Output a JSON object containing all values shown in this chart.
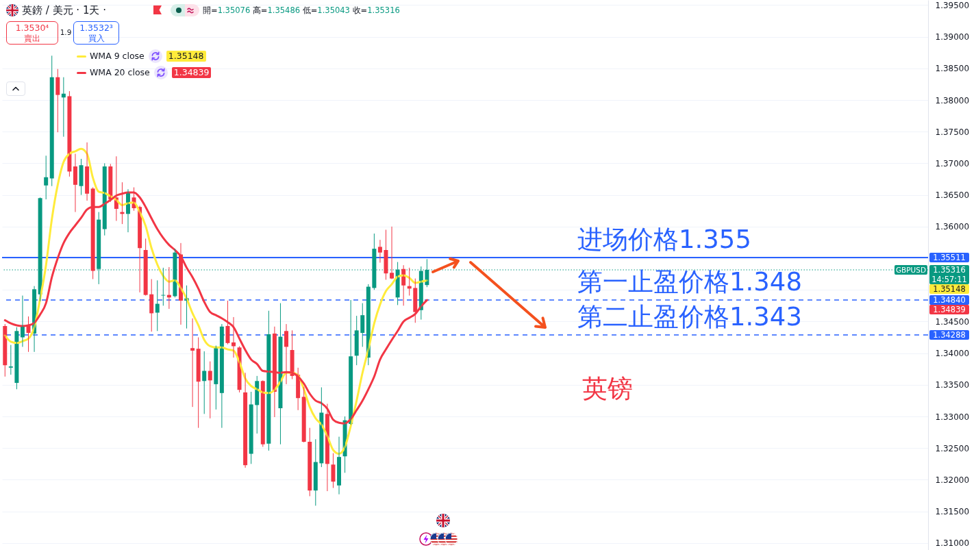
{
  "chart_data": {
    "type": "candlestick",
    "title": "英鎊 / 美元 · 1天 ·",
    "subtitle": "開=1.35076 高=1.35486 低=1.35043 收=1.35316",
    "categories": [
      null,
      null,
      null,
      null,
      null,
      null,
      null,
      null,
      null,
      null,
      null,
      null,
      null,
      null,
      null,
      null,
      null,
      null,
      null,
      null,
      null,
      null,
      null,
      null,
      null,
      null,
      null,
      null,
      null,
      null,
      null,
      null,
      null,
      null,
      null,
      null,
      null,
      null,
      null,
      null,
      null,
      null,
      null,
      null,
      null,
      null,
      null,
      null,
      null,
      null,
      null,
      null,
      null,
      null,
      null,
      null,
      null,
      null,
      null,
      null,
      null,
      null,
      null,
      null,
      null,
      null,
      null,
      null,
      null,
      null,
      null,
      null,
      null,
      null,
      null,
      null,
      null,
      null,
      null,
      null,
      null,
      null,
      null,
      null,
      null,
      null,
      null,
      null,
      null,
      null,
      null,
      null,
      null,
      null,
      null,
      null,
      null,
      null,
      null,
      null,
      null,
      null,
      null,
      null,
      null,
      null,
      null,
      null,
      null,
      null,
      null,
      null,
      null,
      null,
      null,
      null,
      null,
      null,
      null,
      null,
      null,
      null,
      null,
      null,
      null,
      null,
      null,
      null,
      null,
      null,
      null,
      null,
      null,
      null,
      null,
      null,
      null,
      null,
      null,
      null,
      null,
      null,
      null,
      null,
      null,
      null,
      null,
      null,
      null,
      null,
      null,
      null,
      null,
      null,
      null,
      null,
      null,
      null
    ],
    "ohlc": [
      [
        1.3443,
        1.3446,
        1.3363,
        1.3381
      ],
      [
        1.3377,
        1.3413,
        1.3366,
        1.3379
      ],
      [
        1.3353,
        1.3441,
        1.3343,
        1.3435
      ],
      [
        1.3425,
        1.3491,
        1.341,
        1.3443
      ],
      [
        1.3444,
        1.3458,
        1.3402,
        1.3432
      ],
      [
        1.3431,
        1.3506,
        1.3402,
        1.3501
      ],
      [
        1.3493,
        1.3646,
        1.3482,
        1.3645
      ],
      [
        1.3665,
        1.3712,
        1.3643,
        1.3678
      ],
      [
        1.3676,
        1.387,
        1.3664,
        1.3836
      ],
      [
        1.3836,
        1.3849,
        1.3749,
        1.3808
      ],
      [
        1.3804,
        1.3836,
        1.3742,
        1.381
      ],
      [
        1.3806,
        1.3814,
        1.3679,
        1.3687
      ],
      [
        1.3695,
        1.3715,
        1.3623,
        1.3666
      ],
      [
        1.3664,
        1.3707,
        1.365,
        1.3697
      ],
      [
        1.3695,
        1.3733,
        1.3641,
        1.3652
      ],
      [
        1.366,
        1.3662,
        1.3517,
        1.353
      ],
      [
        1.3533,
        1.3623,
        1.3509,
        1.3611
      ],
      [
        1.3596,
        1.37,
        1.3586,
        1.3695
      ],
      [
        1.3695,
        1.3699,
        1.3639,
        1.3643
      ],
      [
        1.3646,
        1.3711,
        1.3609,
        1.3628
      ],
      [
        1.3623,
        1.367,
        1.3604,
        1.362
      ],
      [
        1.362,
        1.3659,
        1.3591,
        1.3654
      ],
      [
        1.3646,
        1.3662,
        1.3625,
        1.3629
      ],
      [
        1.3631,
        1.3633,
        1.3496,
        1.3566
      ],
      [
        1.3563,
        1.3581,
        1.3491,
        1.3492
      ],
      [
        1.3493,
        1.3517,
        1.3434,
        1.3463
      ],
      [
        1.3464,
        1.3515,
        1.3435,
        1.3478
      ],
      [
        1.3491,
        1.3535,
        1.3475,
        1.3492
      ],
      [
        1.3492,
        1.3536,
        1.347,
        1.3488
      ],
      [
        1.349,
        1.3565,
        1.3488,
        1.3559
      ],
      [
        1.3556,
        1.3574,
        1.3445,
        1.3483
      ],
      [
        1.3483,
        1.3507,
        1.3439,
        1.3487
      ],
      [
        1.3408,
        1.3455,
        1.3315,
        1.3404
      ],
      [
        1.3407,
        1.3425,
        1.3282,
        1.3355
      ],
      [
        1.3356,
        1.3403,
        1.3304,
        1.3372
      ],
      [
        1.3372,
        1.3387,
        1.3297,
        1.3357
      ],
      [
        1.3351,
        1.3412,
        1.3311,
        1.3409
      ],
      [
        1.3337,
        1.3446,
        1.3282,
        1.3442
      ],
      [
        1.3443,
        1.3483,
        1.3414,
        1.3416
      ],
      [
        1.3417,
        1.3457,
        1.3393,
        1.3411
      ],
      [
        1.3409,
        1.3411,
        1.3338,
        1.3342
      ],
      [
        1.3338,
        1.3369,
        1.3219,
        1.3223
      ],
      [
        1.3241,
        1.3339,
        1.3225,
        1.3319
      ],
      [
        1.3318,
        1.3364,
        1.3273,
        1.3356
      ],
      [
        1.3356,
        1.3357,
        1.3252,
        1.3256
      ],
      [
        1.3257,
        1.3467,
        1.3246,
        1.343
      ],
      [
        1.3431,
        1.3442,
        1.3299,
        1.3339
      ],
      [
        1.3313,
        1.3479,
        1.3256,
        1.3426
      ],
      [
        1.3435,
        1.3446,
        1.3351,
        1.341
      ],
      [
        1.3405,
        1.3436,
        1.3359,
        1.3364
      ],
      [
        1.3366,
        1.3377,
        1.331,
        1.3329
      ],
      [
        1.3331,
        1.3347,
        1.3259,
        1.326
      ],
      [
        1.326,
        1.3282,
        1.3174,
        1.3183
      ],
      [
        1.3183,
        1.3264,
        1.3159,
        1.3228
      ],
      [
        1.3226,
        1.3346,
        1.322,
        1.3306
      ],
      [
        1.3304,
        1.332,
        1.3182,
        1.3225
      ],
      [
        1.3224,
        1.3242,
        1.3187,
        1.3197
      ],
      [
        1.3191,
        1.3268,
        1.3177,
        1.3236
      ],
      [
        1.3237,
        1.33,
        1.3211,
        1.3294
      ],
      [
        1.3288,
        1.3484,
        1.3287,
        1.3395
      ],
      [
        1.3396,
        1.3459,
        1.3381,
        1.3436
      ],
      [
        1.3432,
        1.3479,
        1.341,
        1.346
      ],
      [
        1.3393,
        1.3509,
        1.3381,
        1.3505
      ],
      [
        1.3503,
        1.3589,
        1.35,
        1.3565
      ],
      [
        1.3568,
        1.3579,
        1.3543,
        1.3559
      ],
      [
        1.3563,
        1.3595,
        1.3516,
        1.3526
      ],
      [
        1.3527,
        1.36,
        1.3517,
        1.3518
      ],
      [
        1.3488,
        1.3544,
        1.3476,
        1.3532
      ],
      [
        1.3533,
        1.3539,
        1.3475,
        1.3507
      ],
      [
        1.3506,
        1.3535,
        1.3491,
        1.3502
      ],
      [
        1.3503,
        1.3518,
        1.3448,
        1.3465
      ],
      [
        1.3468,
        1.3537,
        1.3453,
        1.353
      ],
      [
        1.35076,
        1.35486,
        1.35043,
        1.35316
      ],
      null,
      null,
      null,
      null,
      null,
      null,
      null,
      null,
      null,
      null,
      null,
      null,
      null,
      null,
      null,
      null,
      null,
      null,
      null,
      null,
      null,
      null,
      null,
      null,
      null,
      null,
      null,
      null,
      null,
      null,
      null,
      null,
      null,
      null,
      null,
      null,
      null,
      null,
      null,
      null,
      null,
      null,
      null,
      null,
      null,
      null,
      null,
      null,
      null,
      null,
      null,
      null,
      null,
      null,
      null,
      null,
      null,
      null,
      null,
      null,
      null,
      null,
      null,
      null,
      null,
      null,
      null,
      null,
      null,
      null,
      null,
      null,
      null,
      null,
      null,
      null,
      null,
      null,
      null,
      null,
      null,
      null,
      null,
      null,
      null
    ],
    "colors": [
      "#f23645",
      "#089981",
      "#089981",
      "#089981",
      "#f23645",
      "#089981",
      "#089981",
      "#089981",
      "#089981",
      "#f23645",
      "#089981",
      "#f23645",
      "#f23645",
      "#089981",
      "#f23645",
      "#f23645",
      "#089981",
      "#089981",
      "#f23645",
      "#f23645",
      "#f23645",
      "#089981",
      "#f23645",
      "#f23645",
      "#f23645",
      "#f23645",
      "#089981",
      "#089981",
      "#f23645",
      "#089981",
      "#f23645",
      "#089981",
      "#f23645",
      "#f23645",
      "#089981",
      "#f23645",
      "#089981",
      "#089981",
      "#f23645",
      "#f23645",
      "#f23645",
      "#f23645",
      "#089981",
      "#089981",
      "#f23645",
      "#089981",
      "#f23645",
      "#089981",
      "#f23645",
      "#f23645",
      "#f23645",
      "#f23645",
      "#f23645",
      "#089981",
      "#089981",
      "#f23645",
      "#f23645",
      "#089981",
      "#089981",
      "#089981",
      "#089981",
      "#089981",
      "#089981",
      "#089981",
      "#f23645",
      "#f23645",
      "#f23645",
      "#089981",
      "#f23645",
      "#f23645",
      "#f23645",
      "#089981",
      "#089981",
      null,
      null,
      null,
      null,
      null,
      null,
      null,
      null,
      null,
      null,
      null,
      null,
      null,
      null,
      null,
      null,
      null,
      null,
      null,
      null,
      null,
      null,
      null,
      null,
      null,
      null,
      null,
      null,
      null,
      null,
      null,
      null,
      null,
      null,
      null,
      null,
      null,
      null,
      null,
      null,
      null,
      null,
      null,
      null,
      null,
      null,
      null,
      null,
      null,
      null,
      null,
      null,
      null,
      null,
      null,
      null,
      null,
      null,
      null,
      null,
      null,
      null,
      null,
      null,
      null,
      null,
      null,
      null,
      null,
      null,
      null,
      null,
      null,
      null,
      null,
      null,
      null,
      null,
      null,
      null,
      null,
      null,
      null,
      null,
      null
    ],
    "series": [
      {
        "name": "WMA 9 close",
        "type": "line",
        "color": "#ffeb3b",
        "values": [
          1.3428,
          1.3418,
          1.3416,
          1.3419,
          1.3423,
          1.3441,
          1.3486,
          1.3539,
          1.3612,
          1.3666,
          1.3702,
          1.3715,
          1.3719,
          1.3723,
          1.3715,
          1.3677,
          1.3655,
          1.3653,
          1.3648,
          1.3642,
          1.3634,
          1.3637,
          1.3638,
          1.3623,
          1.3601,
          1.3566,
          1.354,
          1.3522,
          1.3513,
          1.3515,
          1.3503,
          1.3486,
          1.3463,
          1.3444,
          1.3421,
          1.3411,
          1.3409,
          1.3409,
          1.3406,
          1.3404,
          1.3386,
          1.336,
          1.3348,
          1.3343,
          1.3338,
          1.3337,
          1.3342,
          1.3355,
          1.3369,
          1.3369,
          1.3365,
          1.3343,
          1.3315,
          1.3297,
          1.3287,
          1.3269,
          1.3247,
          1.3241,
          1.3252,
          1.3285,
          1.3325,
          1.3369,
          1.3406,
          1.3447,
          1.3477,
          1.3498,
          1.3509,
          1.3521,
          1.3523,
          1.3519,
          1.3511,
          1.3513,
          1.35148,
          null,
          null,
          null,
          null,
          null,
          null,
          null,
          null,
          null,
          null,
          null,
          null,
          null,
          null,
          null,
          null,
          null,
          null,
          null,
          null,
          null,
          null,
          null,
          null,
          null,
          null,
          null,
          null,
          null,
          null,
          null,
          null,
          null,
          null,
          null,
          null,
          null,
          null,
          null,
          null,
          null,
          null,
          null,
          null,
          null,
          null,
          null,
          null,
          null,
          null,
          null,
          null,
          null,
          null,
          null,
          null,
          null,
          null,
          null,
          null,
          null,
          null,
          null,
          null,
          null,
          null,
          null,
          null,
          null,
          null,
          null,
          null,
          null,
          null,
          null,
          null,
          null,
          null,
          null,
          null,
          null,
          null,
          null,
          null,
          null
        ]
      },
      {
        "name": "WMA 20 close",
        "type": "line",
        "color": "#f23645",
        "values": [
          1.3452,
          1.3447,
          1.3444,
          1.3443,
          1.3444,
          1.3448,
          1.3461,
          1.3479,
          1.352,
          1.355,
          1.3574,
          1.359,
          1.3602,
          1.3614,
          1.3627,
          1.3631,
          1.3631,
          1.3636,
          1.3642,
          1.3649,
          1.3652,
          1.3654,
          1.3654,
          1.3646,
          1.3631,
          1.3613,
          1.3596,
          1.3582,
          1.3571,
          1.3563,
          1.3553,
          1.3535,
          1.352,
          1.3502,
          1.3481,
          1.3465,
          1.346,
          1.3455,
          1.3449,
          1.3441,
          1.3423,
          1.3405,
          1.339,
          1.3383,
          1.3372,
          1.3371,
          1.337,
          1.3369,
          1.337,
          1.3369,
          1.3363,
          1.3352,
          1.3336,
          1.3325,
          1.3321,
          1.3312,
          1.3295,
          1.329,
          1.3289,
          1.3296,
          1.331,
          1.3325,
          1.3343,
          1.3363,
          1.339,
          1.3406,
          1.3421,
          1.3435,
          1.345,
          1.3456,
          1.3462,
          1.3474,
          1.34839,
          null,
          null,
          null,
          null,
          null,
          null,
          null,
          null,
          null,
          null,
          null,
          null,
          null,
          null,
          null,
          null,
          null,
          null,
          null,
          null,
          null,
          null,
          null,
          null,
          null,
          null,
          null,
          null,
          null,
          null,
          null,
          null,
          null,
          null,
          null,
          null,
          null,
          null,
          null,
          null,
          null,
          null,
          null,
          null,
          null,
          null,
          null,
          null,
          null,
          null,
          null,
          null,
          null,
          null,
          null,
          null,
          null,
          null,
          null,
          null,
          null,
          null,
          null,
          null,
          null,
          null,
          null,
          null,
          null,
          null,
          null,
          null,
          null,
          null,
          null,
          null,
          null,
          null,
          null,
          null,
          null,
          null,
          null,
          null,
          null
        ]
      }
    ],
    "ylim": [
      1.3089,
      1.3958
    ],
    "yticks": [
      {
        "value": 1.31,
        "label": "1.31000"
      },
      {
        "value": 1.315,
        "label": "1.31500"
      },
      {
        "value": 1.32,
        "label": "1.32000"
      },
      {
        "value": 1.325,
        "label": "1.32500"
      },
      {
        "value": 1.33,
        "label": "1.33000"
      },
      {
        "value": 1.335,
        "label": "1.33500"
      },
      {
        "value": 1.34,
        "label": "1.34000"
      },
      {
        "value": 1.345,
        "label": "1.34500"
      },
      {
        "value": 1.35,
        "label": null
      },
      {
        "value": 1.355,
        "label": null
      },
      {
        "value": 1.36,
        "label": "1.36000"
      },
      {
        "value": 1.365,
        "label": "1.36500"
      },
      {
        "value": 1.37,
        "label": "1.37000"
      },
      {
        "value": 1.375,
        "label": "1.37500"
      },
      {
        "value": 1.38,
        "label": "1.38000"
      },
      {
        "value": 1.385,
        "label": "1.38500"
      },
      {
        "value": 1.39,
        "label": "1.39000"
      },
      {
        "value": 1.395,
        "label": "1.39500"
      }
    ],
    "tick_labels": "y",
    "grid": "y",
    "legend": "top left",
    "ref_lines": [
      {
        "axis": "y",
        "value": 1.35511,
        "label": "进场价格1.355",
        "color": "#2962ff",
        "line_style": "solid"
      },
      {
        "axis": "y",
        "value": 1.35316,
        "label": "GBPUSD",
        "color": "#089981",
        "line_style": "dotted"
      },
      {
        "axis": "y",
        "value": 1.3484,
        "label": "第一止盈价格1.348",
        "color": "#2962ff",
        "line_style": "dashed"
      },
      {
        "axis": "y",
        "value": 1.34288,
        "label": "第二止盈价格1.343",
        "color": "#2962ff",
        "line_style": "dashed"
      }
    ],
    "annotations": [
      "1.3530⁴",
      "賣出",
      "1.9",
      "1.3532³",
      "買入",
      "英镑",
      "1.35148",
      "1.34839",
      "1.35511",
      "1.35316",
      "14:57:11",
      "1.35148",
      "1.34840",
      "1.34839",
      "1.34288"
    ]
  }
}
